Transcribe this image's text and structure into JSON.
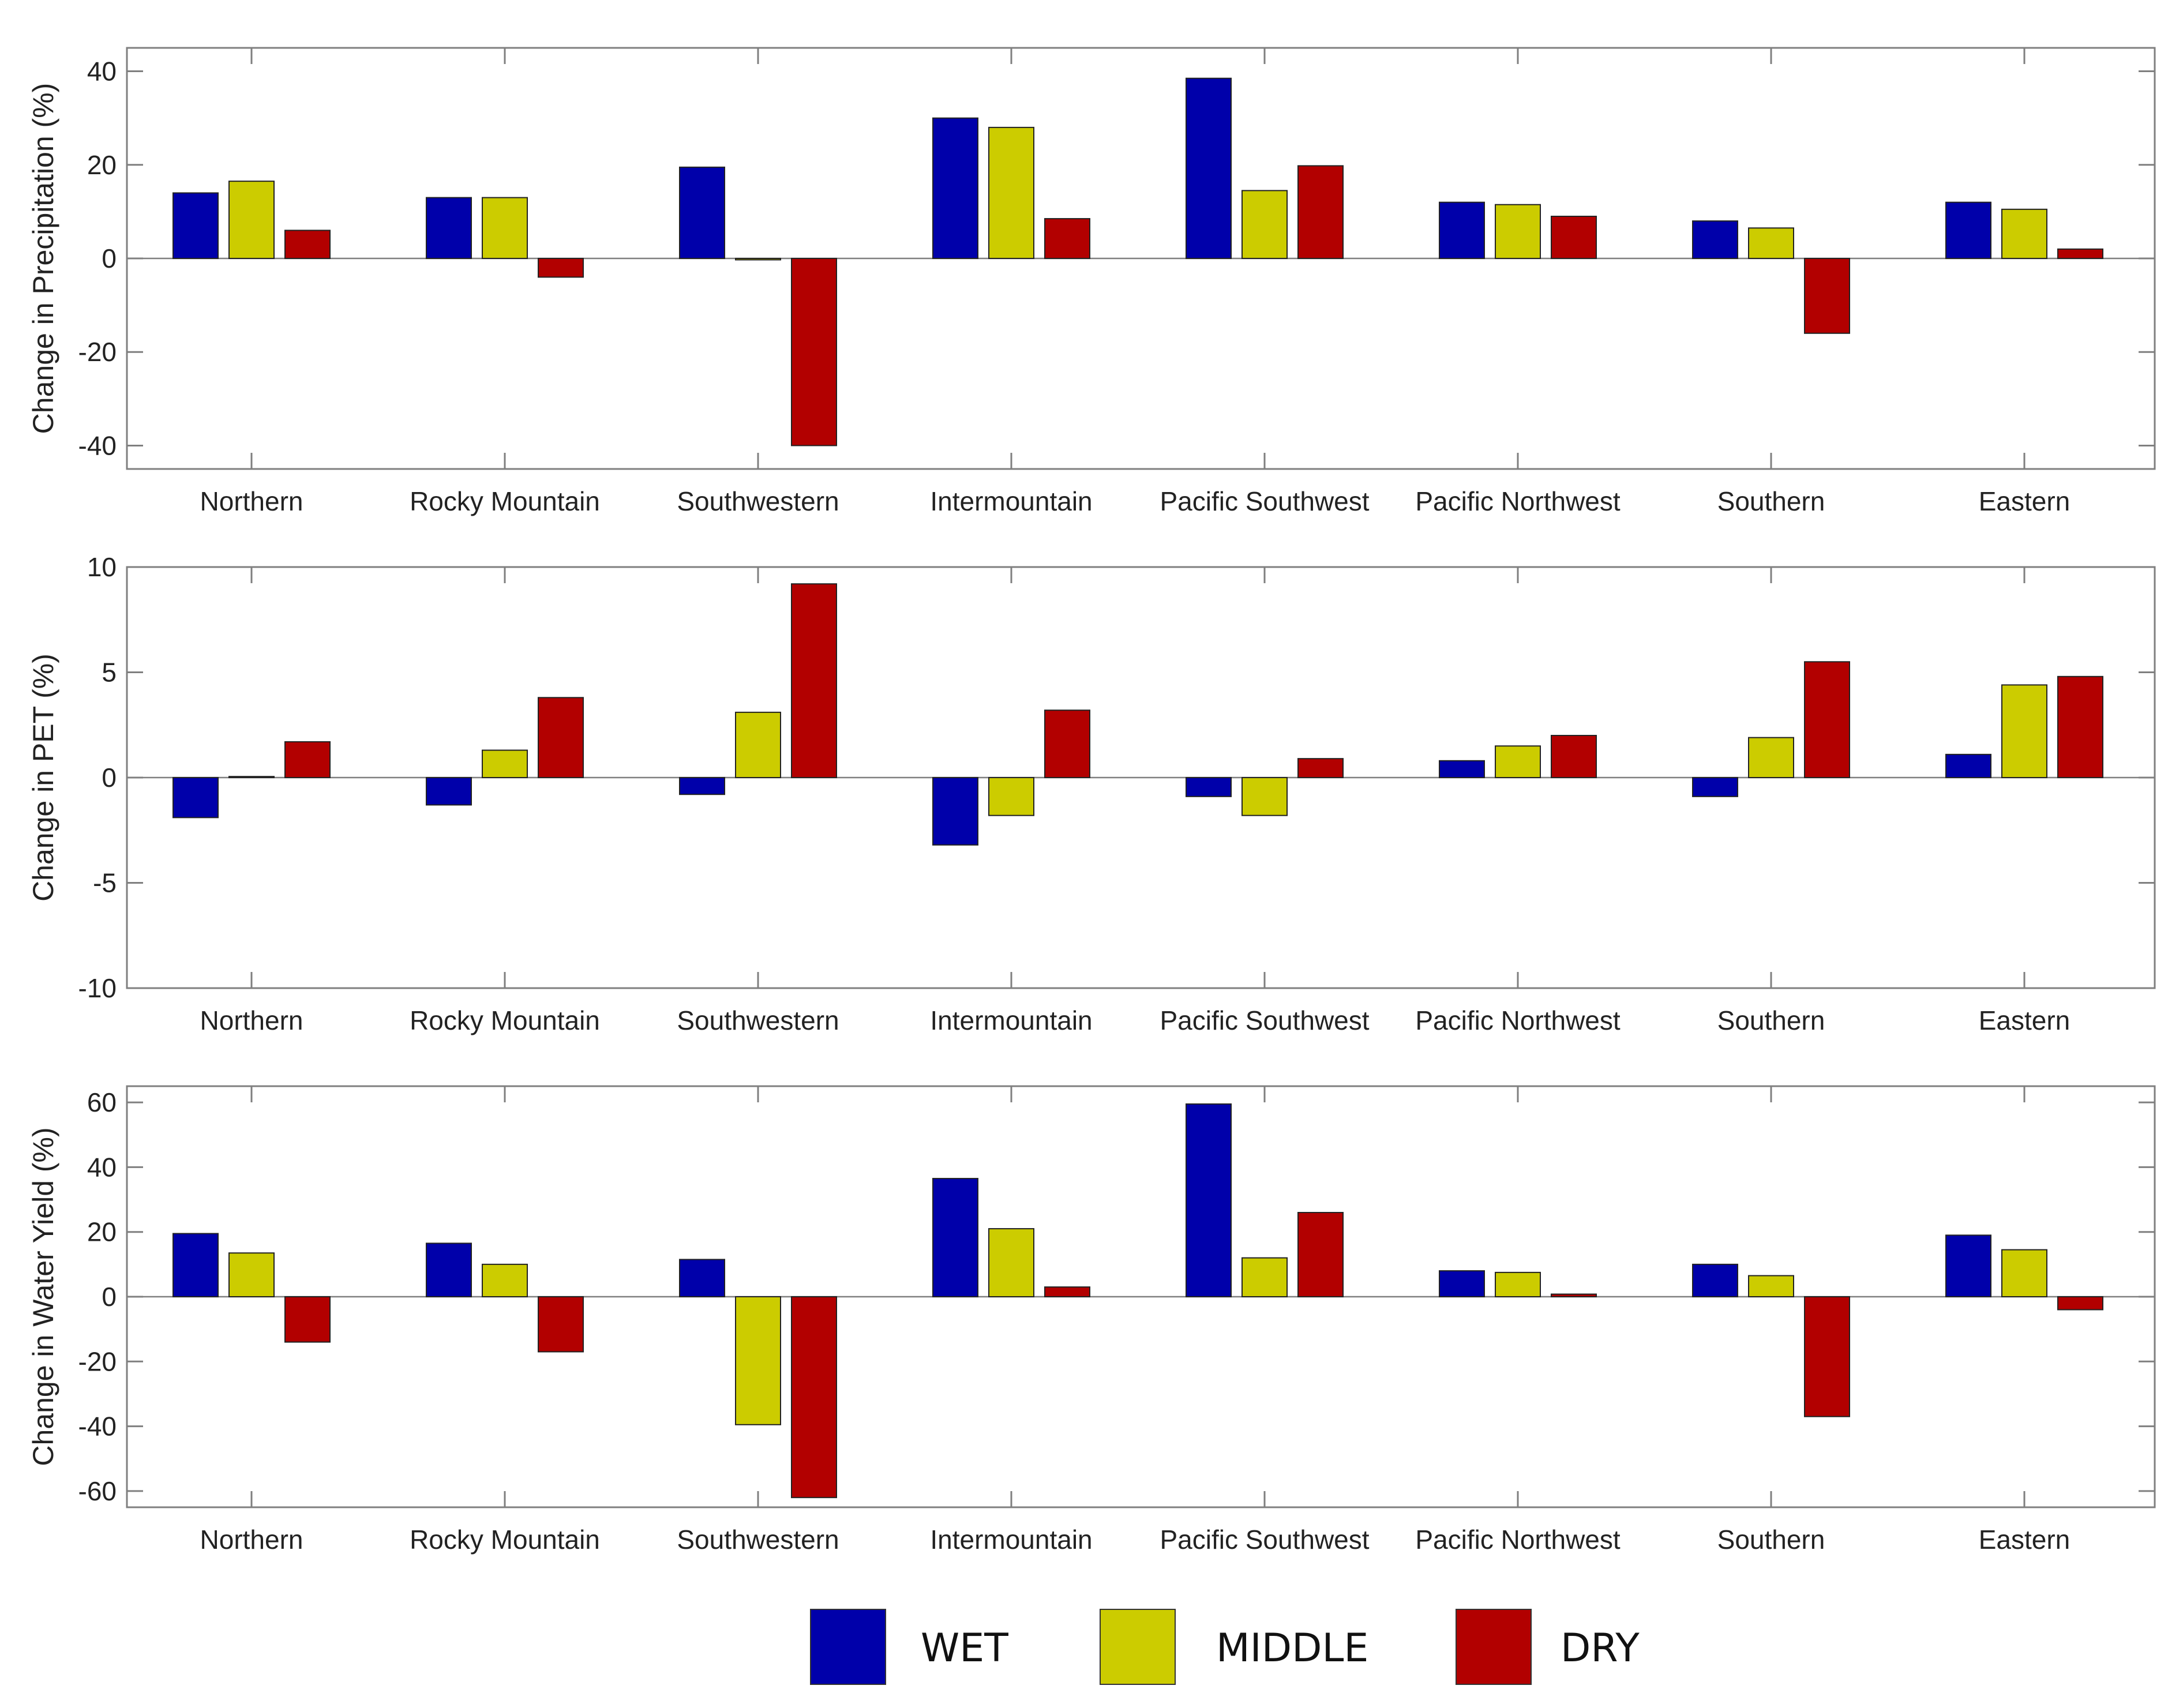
{
  "colors": {
    "wet": "#0000aa",
    "middle": "#cccc00",
    "dry": "#b20000",
    "axis": "#7f7f7f",
    "zero_line": "#7f7f7f"
  },
  "legend": {
    "items": [
      {
        "key": "wet",
        "label": "WET"
      },
      {
        "key": "middle",
        "label": "MIDDLE"
      },
      {
        "key": "dry",
        "label": "DRY"
      }
    ],
    "placement": "bottom-center"
  },
  "chart_data": [
    {
      "type": "bar",
      "title": "",
      "xlabel": "",
      "ylabel": "Change in Precipitation (%)",
      "ylim": [
        -45,
        45
      ],
      "yticks": [
        -40,
        -20,
        0,
        20,
        40
      ],
      "ytick_labels": [
        "-40",
        "-20",
        "0",
        "20",
        "40"
      ],
      "categories": [
        "Northern",
        "Rocky Mountain",
        "Southwestern",
        "Intermountain",
        "Pacific Southwest",
        "Pacific Northwest",
        "Southern",
        "Eastern"
      ],
      "series": [
        {
          "name": "WET",
          "key": "wet",
          "values": [
            14,
            13,
            19.5,
            30,
            38.5,
            12,
            8,
            12
          ]
        },
        {
          "name": "MIDDLE",
          "key": "middle",
          "values": [
            16.5,
            13,
            -0.3,
            28,
            14.5,
            11.5,
            6.5,
            10.5
          ]
        },
        {
          "name": "DRY",
          "key": "dry",
          "values": [
            6,
            -4,
            -40,
            8.5,
            19.8,
            9,
            -16,
            2
          ]
        }
      ]
    },
    {
      "type": "bar",
      "title": "",
      "xlabel": "",
      "ylabel": "Change in PET (%)",
      "ylim": [
        -10,
        10
      ],
      "yticks": [
        -10,
        -5,
        0,
        5,
        10
      ],
      "ytick_labels": [
        "-10",
        "-5",
        "0",
        "5",
        "10"
      ],
      "categories": [
        "Northern",
        "Rocky Mountain",
        "Southwestern",
        "Intermountain",
        "Pacific Southwest",
        "Pacific Northwest",
        "Southern",
        "Eastern"
      ],
      "series": [
        {
          "name": "WET",
          "key": "wet",
          "values": [
            -1.9,
            -1.3,
            -0.8,
            -3.2,
            -0.9,
            0.8,
            -0.9,
            1.1
          ]
        },
        {
          "name": "MIDDLE",
          "key": "middle",
          "values": [
            0.05,
            1.3,
            3.1,
            -1.8,
            -1.8,
            1.5,
            1.9,
            4.4
          ]
        },
        {
          "name": "DRY",
          "key": "dry",
          "values": [
            1.7,
            3.8,
            9.2,
            3.2,
            0.9,
            2.0,
            5.5,
            4.8
          ]
        }
      ]
    },
    {
      "type": "bar",
      "title": "",
      "xlabel": "",
      "ylabel": "Change in Water Yield (%)",
      "ylim": [
        -65,
        65
      ],
      "yticks": [
        -60,
        -40,
        -20,
        0,
        20,
        40,
        60
      ],
      "ytick_labels": [
        "-60",
        "-40",
        "-20",
        "0",
        "20",
        "40",
        "60"
      ],
      "categories": [
        "Northern",
        "Rocky Mountain",
        "Southwestern",
        "Intermountain",
        "Pacific Southwest",
        "Pacific Northwest",
        "Southern",
        "Eastern"
      ],
      "series": [
        {
          "name": "WET",
          "key": "wet",
          "values": [
            19.5,
            16.5,
            11.5,
            36.5,
            59.5,
            8,
            10,
            19
          ]
        },
        {
          "name": "MIDDLE",
          "key": "middle",
          "values": [
            13.5,
            10,
            -39.5,
            21,
            12,
            7.5,
            6.5,
            14.5
          ]
        },
        {
          "name": "DRY",
          "key": "dry",
          "values": [
            -14,
            -17,
            -62,
            3,
            26,
            0.8,
            -37,
            -4
          ]
        }
      ]
    }
  ]
}
